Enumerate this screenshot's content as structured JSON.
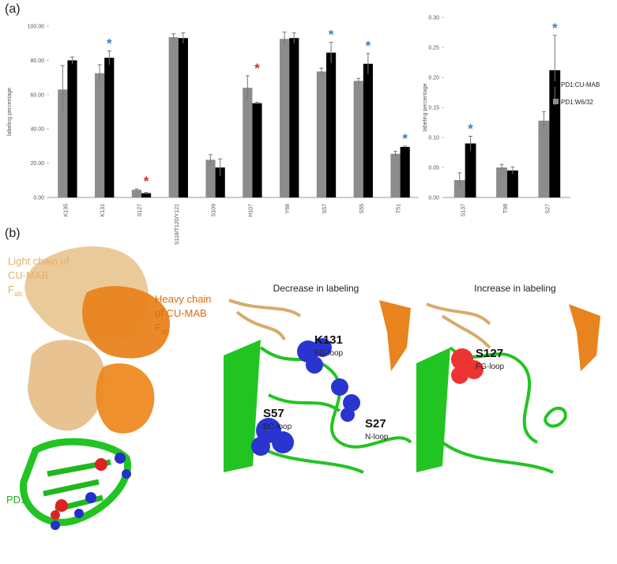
{
  "chart_data": [
    {
      "type": "bar",
      "ylabel": "labeling percentage",
      "categories": [
        "K135",
        "K131",
        "S127",
        "S118/T120/Y121",
        "S109",
        "H107",
        "Y68",
        "S57",
        "S55",
        "T51"
      ],
      "series": [
        {
          "color": "#8c8c8c",
          "values": [
            63,
            72.5,
            4.5,
            93.5,
            22,
            64,
            92.5,
            73.5,
            68,
            25.5
          ],
          "errors": [
            14,
            5,
            0.5,
            2,
            3,
            7,
            4,
            2,
            1.5,
            1.5
          ]
        },
        {
          "color": "#000000",
          "values": [
            80,
            81.5,
            2.5,
            93,
            17.5,
            55,
            93,
            84.5,
            78,
            29.5
          ],
          "errors": [
            2,
            4,
            0.5,
            3,
            5,
            0.5,
            3,
            6,
            6,
            0.5
          ]
        }
      ],
      "significance": [
        null,
        "*",
        "*",
        null,
        null,
        "*",
        null,
        "*",
        "*",
        "*"
      ],
      "significance_colors": [
        null,
        "#3a7fc8",
        "#e02424",
        null,
        null,
        "#e02424",
        null,
        "#3a7fc8",
        "#3a7fc8",
        "#3a7fc8"
      ],
      "ylim": [
        0,
        100
      ],
      "yticks": [
        {
          "value": 0,
          "label": "0.00"
        },
        {
          "value": 20,
          "label": "20.00"
        },
        {
          "value": 40,
          "label": "40.00"
        },
        {
          "value": 60,
          "label": "60.00"
        },
        {
          "value": 80,
          "label": "80.00"
        },
        {
          "value": 100,
          "label": "100.00"
        }
      ],
      "grid": false
    },
    {
      "type": "bar",
      "ylabel": "labeling percentage",
      "categories": [
        "S137",
        "T98",
        "S27"
      ],
      "series": [
        {
          "name": "PD1:W6/32",
          "color": "#8c8c8c",
          "values": [
            0.029,
            0.05,
            0.128
          ],
          "errors": [
            0.012,
            0.005,
            0.015
          ]
        },
        {
          "name": "PD1:CU-MAB",
          "color": "#000000",
          "values": [
            0.09,
            0.045,
            0.212
          ],
          "errors": [
            0.012,
            0.006,
            0.058
          ]
        }
      ],
      "significance": [
        "*",
        null,
        "*"
      ],
      "significance_colors": [
        "#3a7fc8",
        null,
        "#3a7fc8"
      ],
      "ylim": [
        0,
        0.3
      ],
      "yticks": [
        {
          "value": 0,
          "label": "0.00"
        },
        {
          "value": 0.05,
          "label": "0.05"
        },
        {
          "value": 0.1,
          "label": "0.10"
        },
        {
          "value": 0.15,
          "label": "0.15"
        },
        {
          "value": 0.2,
          "label": "0.20"
        },
        {
          "value": 0.25,
          "label": "0.25"
        },
        {
          "value": 0.3,
          "label": "0.30"
        }
      ],
      "legend": "right",
      "grid": false
    }
  ],
  "figure": {
    "panel_labels": [
      "(a)",
      "(b)"
    ],
    "light_chain": {
      "lines": [
        "Light chain of",
        "CU-MAB",
        "F"
      ],
      "subscript": "ab"
    },
    "heavy_chain": {
      "lines": [
        "Heavy chain",
        "of CU-MAB",
        "F"
      ],
      "subscript": "ab"
    },
    "pd1": "PD1",
    "decrease_title": "Decrease in labeling",
    "increase_title": "Increase in labeling",
    "residues": [
      {
        "name": "K131",
        "loop": "FG-loop"
      },
      {
        "name": "S57",
        "loop": "BC-loop"
      },
      {
        "name": "S27",
        "loop": "N-loop"
      },
      {
        "name": "S127",
        "loop": "FG-loop"
      }
    ]
  }
}
